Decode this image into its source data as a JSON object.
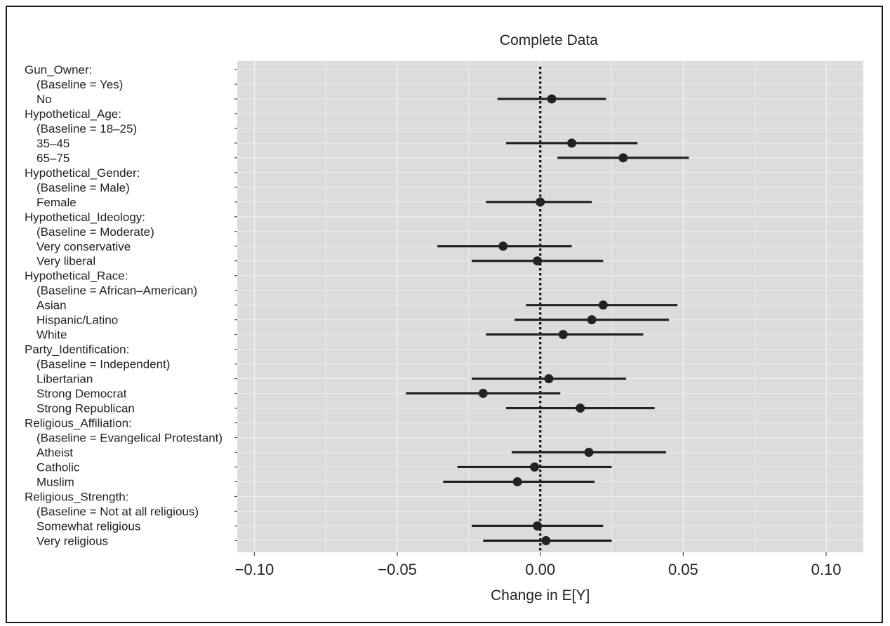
{
  "chart_data": {
    "type": "scatter",
    "title": "Complete Data",
    "xlabel": "Change in E[Y]",
    "ylabel": "",
    "xlim": [
      -0.106,
      0.113
    ],
    "xticks": [
      -0.1,
      -0.05,
      0.0,
      0.05,
      0.1
    ],
    "xtick_labels": [
      "−0.10",
      "−0.05",
      "0.00",
      "0.05",
      "0.10"
    ],
    "reference_line": 0.0,
    "grid": true,
    "legend": "none",
    "colors": {
      "panel": "#dcdcdc",
      "grid": "#f2f2f2",
      "point": "#222222",
      "reference": "#111111"
    },
    "rows": [
      {
        "label": "Gun_Owner:",
        "indent": 0
      },
      {
        "label": "(Baseline = Yes)",
        "indent": 1
      },
      {
        "label": "No",
        "indent": 1,
        "estimate": 0.004,
        "lower": -0.015,
        "upper": 0.023
      },
      {
        "label": "Hypothetical_Age:",
        "indent": 0
      },
      {
        "label": "(Baseline = 18–25)",
        "indent": 1
      },
      {
        "label": "35–45",
        "indent": 1,
        "estimate": 0.011,
        "lower": -0.012,
        "upper": 0.034
      },
      {
        "label": "65–75",
        "indent": 1,
        "estimate": 0.029,
        "lower": 0.006,
        "upper": 0.052
      },
      {
        "label": "Hypothetical_Gender:",
        "indent": 0
      },
      {
        "label": "(Baseline = Male)",
        "indent": 1
      },
      {
        "label": "Female",
        "indent": 1,
        "estimate": 0.0,
        "lower": -0.019,
        "upper": 0.018
      },
      {
        "label": "Hypothetical_Ideology:",
        "indent": 0
      },
      {
        "label": "(Baseline = Moderate)",
        "indent": 1
      },
      {
        "label": "Very conservative",
        "indent": 1,
        "estimate": -0.013,
        "lower": -0.036,
        "upper": 0.011
      },
      {
        "label": "Very liberal",
        "indent": 1,
        "estimate": -0.001,
        "lower": -0.024,
        "upper": 0.022
      },
      {
        "label": "Hypothetical_Race:",
        "indent": 0
      },
      {
        "label": "(Baseline = African–American)",
        "indent": 1
      },
      {
        "label": "Asian",
        "indent": 1,
        "estimate": 0.022,
        "lower": -0.005,
        "upper": 0.048
      },
      {
        "label": "Hispanic/Latino",
        "indent": 1,
        "estimate": 0.018,
        "lower": -0.009,
        "upper": 0.045
      },
      {
        "label": "White",
        "indent": 1,
        "estimate": 0.008,
        "lower": -0.019,
        "upper": 0.036
      },
      {
        "label": "Party_Identification:",
        "indent": 0
      },
      {
        "label": "(Baseline = Independent)",
        "indent": 1
      },
      {
        "label": "Libertarian",
        "indent": 1,
        "estimate": 0.003,
        "lower": -0.024,
        "upper": 0.03
      },
      {
        "label": "Strong Democrat",
        "indent": 1,
        "estimate": -0.02,
        "lower": -0.047,
        "upper": 0.007
      },
      {
        "label": "Strong Republican",
        "indent": 1,
        "estimate": 0.014,
        "lower": -0.012,
        "upper": 0.04
      },
      {
        "label": "Religious_Affiliation:",
        "indent": 0
      },
      {
        "label": "(Baseline = Evangelical Protestant)",
        "indent": 1
      },
      {
        "label": "Atheist",
        "indent": 1,
        "estimate": 0.017,
        "lower": -0.01,
        "upper": 0.044
      },
      {
        "label": "Catholic",
        "indent": 1,
        "estimate": -0.002,
        "lower": -0.029,
        "upper": 0.025
      },
      {
        "label": "Muslim",
        "indent": 1,
        "estimate": -0.008,
        "lower": -0.034,
        "upper": 0.019
      },
      {
        "label": "Religious_Strength:",
        "indent": 0
      },
      {
        "label": "(Baseline = Not at all religious)",
        "indent": 1
      },
      {
        "label": "Somewhat religious",
        "indent": 1,
        "estimate": -0.001,
        "lower": -0.024,
        "upper": 0.022
      },
      {
        "label": "Very religious",
        "indent": 1,
        "estimate": 0.002,
        "lower": -0.02,
        "upper": 0.025
      }
    ]
  }
}
